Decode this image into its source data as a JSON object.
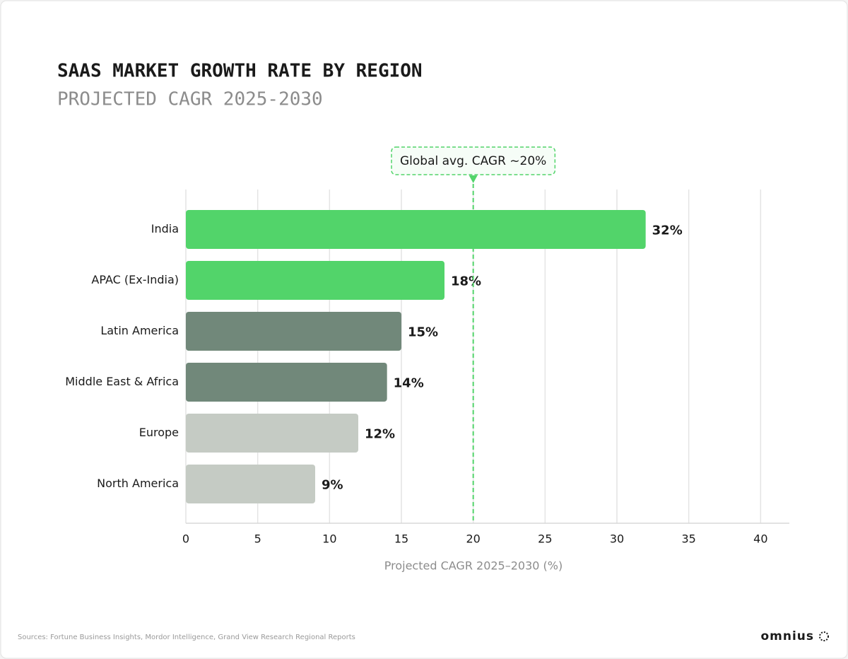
{
  "chart_data": {
    "type": "bar",
    "orientation": "horizontal",
    "title": "SAAS MARKET GROWTH RATE BY REGION",
    "subtitle": "PROJECTED CAGR 2025-2030",
    "xlabel": "Projected CAGR 2025–2030 (%)",
    "categories": [
      "India",
      "APAC (Ex-India)",
      "Latin America",
      "Middle East & Africa",
      "Europe",
      "North America"
    ],
    "values": [
      32,
      18,
      15,
      14,
      12,
      9
    ],
    "value_labels": [
      "32%",
      "18%",
      "15%",
      "14%",
      "12%",
      "9%"
    ],
    "colors": [
      "#52d46a",
      "#52d46a",
      "#71887a",
      "#71887a",
      "#c5cbc4",
      "#c5cbc4"
    ],
    "xlim": [
      0,
      42
    ],
    "xticks": [
      0,
      5,
      10,
      15,
      20,
      25,
      30,
      35,
      40
    ],
    "grid": true,
    "reference_line": {
      "value": 20,
      "label": "Global avg. CAGR ~20%",
      "color": "#52d46a"
    },
    "source": "Sources: Fortune Business Insights, Mordor Intelligence, Grand View Research Regional Reports",
    "brand": "omnius"
  }
}
